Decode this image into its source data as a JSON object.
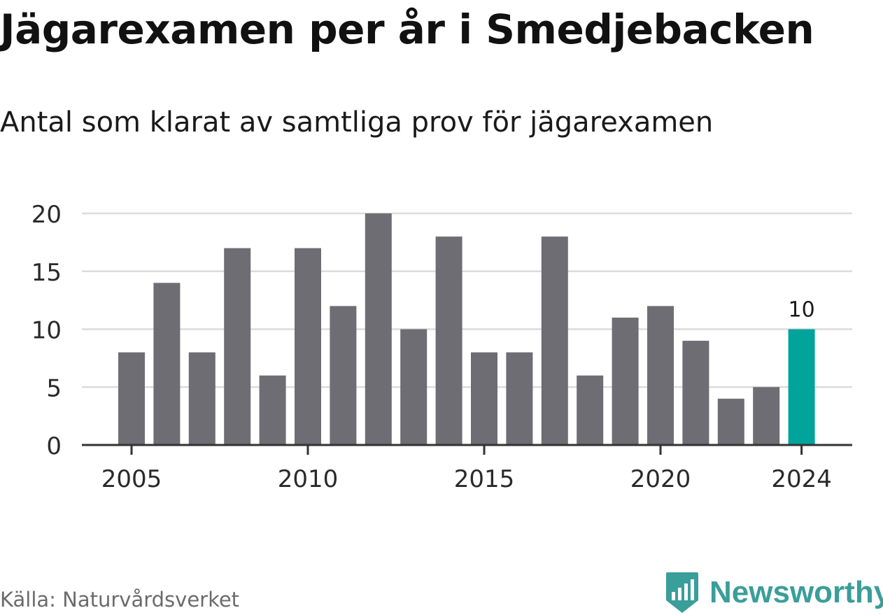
{
  "title": "Jägarexamen per år i Smedjebacken",
  "subtitle": "Antal som klarat av samtliga prov för jägarexamen",
  "source": "Källa: Naturvårdsverket",
  "brand": {
    "name": "Newsworthy",
    "logo_icon": "bar-chart-badge-icon",
    "color": "#3a9e9a"
  },
  "chart_data": {
    "type": "bar",
    "categories": [
      "2005",
      "2006",
      "2007",
      "2008",
      "2009",
      "2010",
      "2011",
      "2012",
      "2013",
      "2014",
      "2015",
      "2016",
      "2017",
      "2018",
      "2019",
      "2020",
      "2021",
      "2022",
      "2023",
      "2024"
    ],
    "values": [
      8,
      14,
      8,
      17,
      6,
      17,
      12,
      20,
      10,
      18,
      8,
      8,
      18,
      6,
      11,
      12,
      9,
      4,
      5,
      10
    ],
    "x_tick_labels": [
      "2005",
      "2010",
      "2015",
      "2020",
      "2024"
    ],
    "y_tick_labels": [
      "0",
      "5",
      "10",
      "15",
      "20"
    ],
    "ylim": [
      0,
      20
    ],
    "grid": true,
    "highlight": {
      "category": "2024",
      "label": "10",
      "color": "#00a49a"
    },
    "bar_color": "#6d6d73"
  }
}
